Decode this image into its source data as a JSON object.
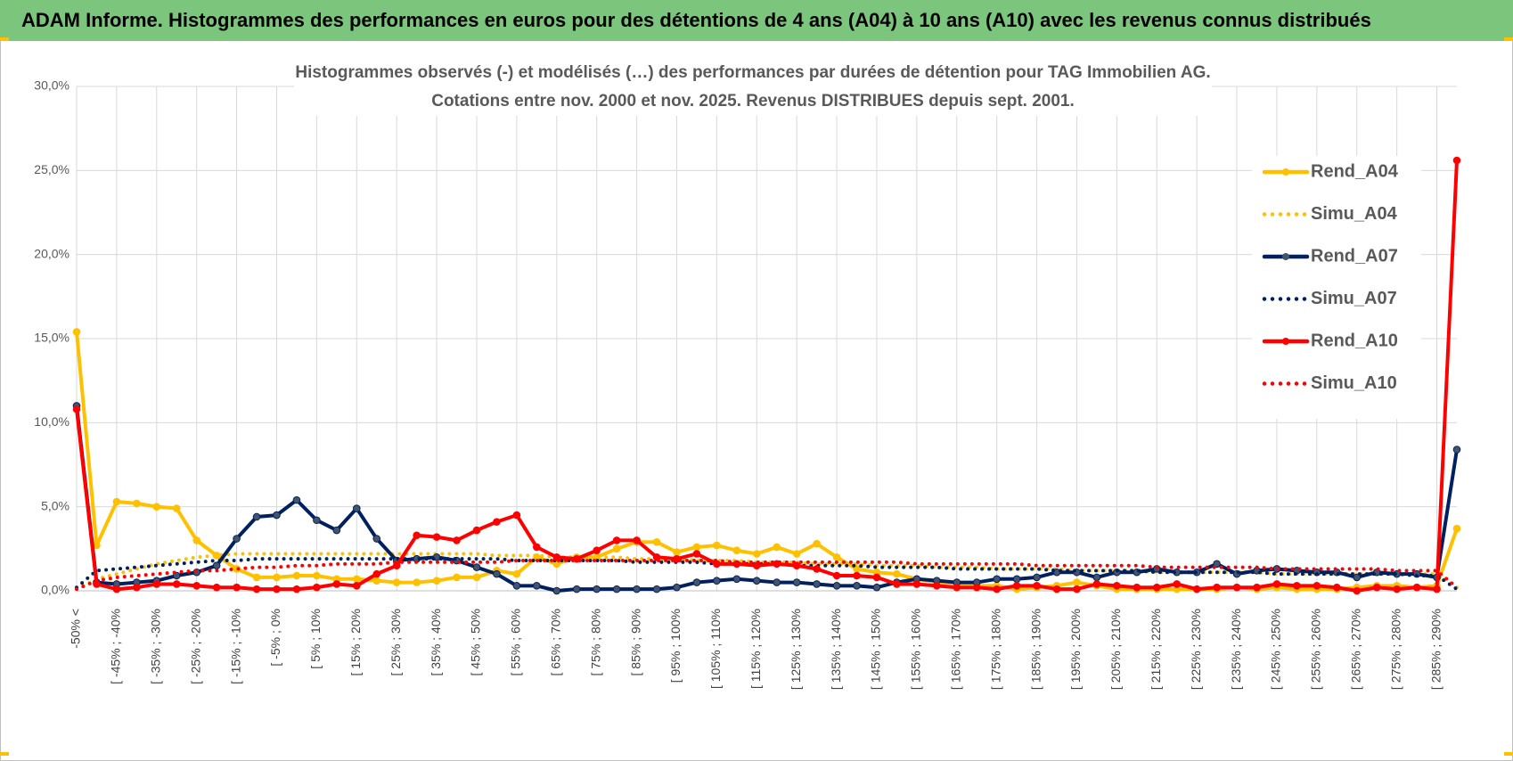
{
  "header_title": "ADAM Informe. Histogrammes des performances en euros pour des détentions de 4 ans (A04) à 10 ans (A10) avec les revenus connus distribués",
  "chart_data": {
    "type": "line",
    "title": [
      "Histogrammes observés (-) et modélisés (…) des performances par durées de détention pour TAG Immobilien AG.",
      "Cotations entre nov. 2000 et nov. 2025. Revenus DISTRIBUES depuis sept. 2001."
    ],
    "categories": [
      "-50% <",
      null,
      "[ -45% ; -40%",
      null,
      "[ -35% ; -30%",
      null,
      "[ -25% ; -20%",
      null,
      "[ -15% ; -10%",
      null,
      "[ -5% ; 0%",
      null,
      "[ 5% ; 10%",
      null,
      "[ 15% ; 20%",
      null,
      "[ 25% ; 30%",
      null,
      "[ 35% ; 40%",
      null,
      "[ 45% ; 50%",
      null,
      "[ 55% ; 60%",
      null,
      "[ 65% ; 70%",
      null,
      "[ 75% ; 80%",
      null,
      "[ 85% ; 90%",
      null,
      "[ 95% ; 100%",
      null,
      "[ 105% ; 110%",
      null,
      "[ 115% ; 120%",
      null,
      "[ 125% ; 130%",
      null,
      "[ 135% ; 140%",
      null,
      "[ 145% ; 150%",
      null,
      "[ 155% ; 160%",
      null,
      "[ 165% ; 170%",
      null,
      "[ 175% ; 180%",
      null,
      "[ 185% ; 190%",
      null,
      "[ 195% ; 200%",
      null,
      "[ 205% ; 210%",
      null,
      "[ 215% ; 220%",
      null,
      "[ 225% ; 230%",
      null,
      "[ 235% ; 240%",
      null,
      "[ 245% ; 250%",
      null,
      "[ 255% ; 260%",
      null,
      "[ 265% ; 270%",
      null,
      "[ 275% ; 280%",
      null,
      "[ 285% ; 290%",
      null
    ],
    "ylim": [
      0,
      30
    ],
    "yticks": [
      {
        "value": 0,
        "label": "0,0%"
      },
      {
        "value": 5,
        "label": "5,0%"
      },
      {
        "value": 10,
        "label": "10,0%"
      },
      {
        "value": 15,
        "label": "15,0%"
      },
      {
        "value": 20,
        "label": "20,0%"
      },
      {
        "value": 25,
        "label": "25,0%"
      },
      {
        "value": 30,
        "label": "30,0%"
      }
    ],
    "grid": true,
    "legend": "right",
    "series": [
      {
        "name": "Rend_A04",
        "color": "#ffc000",
        "style": "solid",
        "values": [
          15.4,
          2.7,
          5.3,
          5.2,
          5.0,
          4.9,
          3.0,
          2.1,
          1.3,
          0.8,
          0.8,
          0.9,
          0.9,
          0.7,
          0.7,
          0.6,
          0.5,
          0.5,
          0.6,
          0.8,
          0.8,
          1.2,
          1.0,
          2.0,
          1.6,
          2.0,
          2.0,
          2.5,
          2.9,
          2.9,
          2.3,
          2.6,
          2.7,
          2.4,
          2.2,
          2.6,
          2.2,
          2.8,
          2.0,
          1.3,
          1.1,
          1.0,
          0.7,
          0.5,
          0.4,
          0.3,
          0.3,
          0.1,
          0.2,
          0.3,
          0.5,
          0.3,
          0.1,
          0.1,
          0.1,
          0.1,
          0.1,
          0.1,
          0.2,
          0.1,
          0.2,
          0.1,
          0.1,
          0.1,
          0.2,
          0.3,
          0.3,
          0.2,
          0.3,
          3.7
        ]
      },
      {
        "name": "Simu_A04",
        "color": "#ffc000",
        "style": "dotted",
        "values": [
          0.1,
          0.7,
          1.0,
          1.3,
          1.6,
          1.8,
          2.0,
          2.1,
          2.2,
          2.2,
          2.2,
          2.2,
          2.2,
          2.2,
          2.2,
          2.2,
          2.2,
          2.2,
          2.2,
          2.2,
          2.2,
          2.1,
          2.1,
          2.1,
          2.0,
          2.0,
          2.0,
          2.0,
          1.9,
          1.9,
          1.9,
          1.8,
          1.8,
          1.8,
          1.7,
          1.7,
          1.7,
          1.6,
          1.6,
          1.6,
          1.5,
          1.5,
          1.5,
          1.4,
          1.4,
          1.4,
          1.3,
          1.3,
          1.3,
          1.3,
          1.2,
          1.2,
          1.2,
          1.2,
          1.1,
          1.1,
          1.1,
          1.1,
          1.1,
          1.1,
          1.0,
          1.0,
          1.0,
          1.0,
          1.0,
          1.0,
          1.0,
          1.0,
          1.0,
          0.2
        ]
      },
      {
        "name": "Rend_A07",
        "color": "#002060",
        "style": "solid",
        "values": [
          11.0,
          0.5,
          0.4,
          0.5,
          0.6,
          0.9,
          1.1,
          1.5,
          3.1,
          4.4,
          4.5,
          5.4,
          4.2,
          3.6,
          4.9,
          3.1,
          1.8,
          1.9,
          2.0,
          1.8,
          1.4,
          1.0,
          0.3,
          0.3,
          0.0,
          0.1,
          0.1,
          0.1,
          0.1,
          0.1,
          0.2,
          0.5,
          0.6,
          0.7,
          0.6,
          0.5,
          0.5,
          0.4,
          0.3,
          0.3,
          0.2,
          0.5,
          0.7,
          0.6,
          0.5,
          0.5,
          0.7,
          0.7,
          0.8,
          1.1,
          1.1,
          0.8,
          1.1,
          1.1,
          1.3,
          1.1,
          1.1,
          1.6,
          1.0,
          1.2,
          1.3,
          1.2,
          1.1,
          1.1,
          0.8,
          1.1,
          1.0,
          1.0,
          0.8,
          8.4
        ]
      },
      {
        "name": "Simu_A07",
        "color": "#002060",
        "style": "dotted",
        "values": [
          0.2,
          1.2,
          1.3,
          1.4,
          1.5,
          1.6,
          1.7,
          1.8,
          1.8,
          1.9,
          1.9,
          1.9,
          1.9,
          1.9,
          1.9,
          1.9,
          1.9,
          1.9,
          1.9,
          1.9,
          1.9,
          1.9,
          1.8,
          1.8,
          1.8,
          1.8,
          1.8,
          1.8,
          1.7,
          1.7,
          1.7,
          1.7,
          1.6,
          1.6,
          1.6,
          1.6,
          1.5,
          1.5,
          1.5,
          1.5,
          1.4,
          1.4,
          1.4,
          1.4,
          1.3,
          1.3,
          1.3,
          1.3,
          1.3,
          1.2,
          1.2,
          1.2,
          1.2,
          1.2,
          1.1,
          1.1,
          1.1,
          1.1,
          1.1,
          1.1,
          1.0,
          1.0,
          1.0,
          1.0,
          1.0,
          1.0,
          1.0,
          0.9,
          0.9,
          0.1
        ]
      },
      {
        "name": "Rend_A10",
        "color": "#ff0000",
        "style": "solid",
        "values": [
          10.8,
          0.4,
          0.1,
          0.2,
          0.4,
          0.4,
          0.3,
          0.2,
          0.2,
          0.1,
          0.1,
          0.1,
          0.2,
          0.4,
          0.3,
          1.0,
          1.5,
          3.3,
          3.2,
          3.0,
          3.6,
          4.1,
          4.5,
          2.6,
          2.0,
          1.9,
          2.4,
          3.0,
          3.0,
          2.0,
          1.9,
          2.2,
          1.6,
          1.6,
          1.5,
          1.6,
          1.5,
          1.3,
          0.9,
          0.9,
          0.8,
          0.4,
          0.4,
          0.3,
          0.2,
          0.2,
          0.1,
          0.3,
          0.3,
          0.1,
          0.1,
          0.4,
          0.3,
          0.2,
          0.2,
          0.4,
          0.1,
          0.2,
          0.2,
          0.2,
          0.4,
          0.3,
          0.3,
          0.2,
          0.0,
          0.2,
          0.1,
          0.2,
          0.1,
          25.6
        ]
      },
      {
        "name": "Simu_A10",
        "color": "#ff0000",
        "style": "dotted",
        "values": [
          0.1,
          0.6,
          0.8,
          0.9,
          1.0,
          1.1,
          1.2,
          1.2,
          1.3,
          1.4,
          1.4,
          1.5,
          1.5,
          1.6,
          1.6,
          1.6,
          1.7,
          1.7,
          1.7,
          1.7,
          1.7,
          1.7,
          1.8,
          1.8,
          1.8,
          1.8,
          1.8,
          1.8,
          1.8,
          1.8,
          1.8,
          1.8,
          1.8,
          1.7,
          1.7,
          1.7,
          1.7,
          1.7,
          1.7,
          1.7,
          1.7,
          1.7,
          1.6,
          1.6,
          1.6,
          1.6,
          1.6,
          1.6,
          1.5,
          1.5,
          1.5,
          1.5,
          1.5,
          1.5,
          1.4,
          1.4,
          1.4,
          1.4,
          1.4,
          1.4,
          1.3,
          1.3,
          1.3,
          1.3,
          1.3,
          1.3,
          1.2,
          1.2,
          1.2,
          0.2
        ]
      }
    ]
  }
}
